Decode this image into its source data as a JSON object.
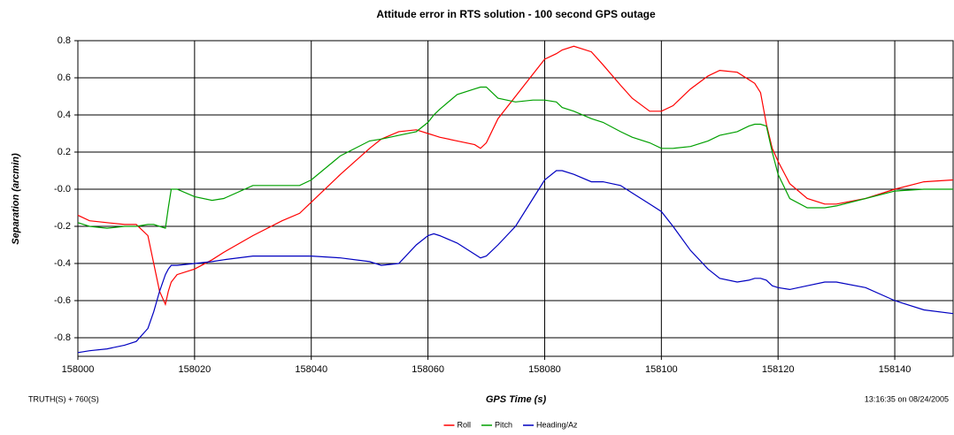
{
  "chart_data": {
    "type": "line",
    "title": "Attitude error in RTS solution - 100 second GPS outage",
    "xlabel": "GPS Time (s)",
    "ylabel": "Separation (arcmin)",
    "footer_left": "TRUTH(S) + 760(S)",
    "footer_right": "13:16:35 on 08/24/2005",
    "x": [
      158000,
      158002,
      158005,
      158008,
      158010,
      158012,
      158013,
      158014,
      158015,
      158015.5,
      158016,
      158017,
      158020,
      158023,
      158025,
      158030,
      158035,
      158038,
      158040,
      158045,
      158050,
      158052,
      158055,
      158058,
      158060,
      158061,
      158062,
      158065,
      158068,
      158069,
      158070,
      158072,
      158075,
      158078,
      158080,
      158082,
      158083,
      158085,
      158088,
      158090,
      158093,
      158095,
      158098,
      158100,
      158102,
      158105,
      158108,
      158110,
      158113,
      158115,
      158116,
      158117,
      158118,
      158119,
      158120,
      158122,
      158125,
      158128,
      158130,
      158135,
      158140,
      158145,
      158150
    ],
    "series": [
      {
        "name": "Roll",
        "color": "#ff0000",
        "values": [
          -0.14,
          -0.17,
          -0.18,
          -0.19,
          -0.19,
          -0.25,
          -0.4,
          -0.55,
          -0.62,
          -0.55,
          -0.5,
          -0.46,
          -0.43,
          -0.38,
          -0.34,
          -0.25,
          -0.17,
          -0.13,
          -0.07,
          0.08,
          0.22,
          0.27,
          0.31,
          0.32,
          0.3,
          0.29,
          0.28,
          0.26,
          0.24,
          0.22,
          0.25,
          0.38,
          0.5,
          0.62,
          0.7,
          0.73,
          0.75,
          0.77,
          0.74,
          0.67,
          0.56,
          0.49,
          0.42,
          0.42,
          0.45,
          0.54,
          0.61,
          0.64,
          0.63,
          0.59,
          0.57,
          0.52,
          0.35,
          0.22,
          0.15,
          0.03,
          -0.05,
          -0.08,
          -0.08,
          -0.05,
          0.0,
          0.04,
          0.05
        ]
      },
      {
        "name": "Pitch",
        "color": "#00a000",
        "values": [
          -0.18,
          -0.2,
          -0.21,
          -0.2,
          -0.2,
          -0.19,
          -0.19,
          -0.2,
          -0.21,
          -0.1,
          0.0,
          0.0,
          -0.04,
          -0.06,
          -0.05,
          0.02,
          0.02,
          0.02,
          0.05,
          0.18,
          0.26,
          0.27,
          0.29,
          0.31,
          0.36,
          0.4,
          0.43,
          0.51,
          0.54,
          0.55,
          0.55,
          0.49,
          0.47,
          0.48,
          0.48,
          0.47,
          0.44,
          0.42,
          0.38,
          0.36,
          0.31,
          0.28,
          0.25,
          0.22,
          0.22,
          0.23,
          0.26,
          0.29,
          0.31,
          0.34,
          0.35,
          0.35,
          0.34,
          0.2,
          0.08,
          -0.05,
          -0.1,
          -0.1,
          -0.09,
          -0.05,
          -0.01,
          0.0,
          0.0
        ]
      },
      {
        "name": "Heading/Az",
        "color": "#0000c0",
        "values": [
          -0.88,
          -0.87,
          -0.86,
          -0.84,
          -0.82,
          -0.75,
          -0.66,
          -0.55,
          -0.46,
          -0.43,
          -0.41,
          -0.41,
          -0.4,
          -0.39,
          -0.38,
          -0.36,
          -0.36,
          -0.36,
          -0.36,
          -0.37,
          -0.39,
          -0.41,
          -0.4,
          -0.3,
          -0.25,
          -0.24,
          -0.25,
          -0.29,
          -0.35,
          -0.37,
          -0.36,
          -0.3,
          -0.2,
          -0.05,
          0.05,
          0.1,
          0.1,
          0.08,
          0.04,
          0.04,
          0.02,
          -0.02,
          -0.08,
          -0.12,
          -0.2,
          -0.33,
          -0.43,
          -0.48,
          -0.5,
          -0.49,
          -0.48,
          -0.48,
          -0.49,
          -0.52,
          -0.53,
          -0.54,
          -0.52,
          -0.5,
          -0.5,
          -0.53,
          -0.6,
          -0.65,
          -0.67
        ]
      }
    ],
    "xlim": [
      158000,
      158150
    ],
    "xticks": [
      158000,
      158020,
      158040,
      158060,
      158080,
      158100,
      158120,
      158140
    ],
    "ylim": [
      -0.9,
      0.8
    ],
    "yticks": [
      -0.8,
      -0.6,
      -0.4,
      -0.2,
      {
        "value": 0,
        "label": "-0.0"
      },
      0.2,
      0.4,
      0.6,
      0.8
    ],
    "grid": true,
    "legend": "bottom"
  }
}
